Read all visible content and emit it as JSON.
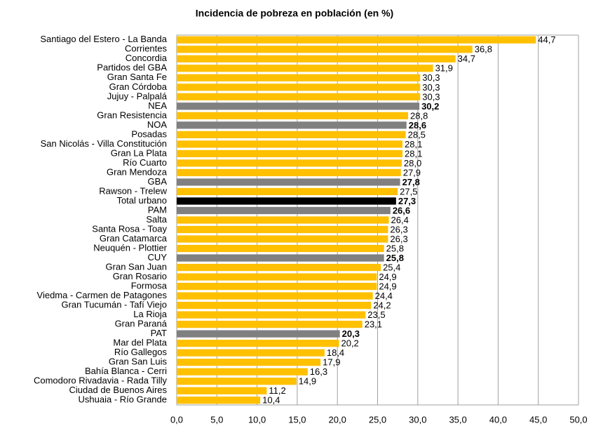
{
  "chart_data": {
    "type": "bar",
    "orientation": "horizontal",
    "title": "Incidencia de pobreza en población (en %)",
    "categories": [
      "Santiago del Estero - La Banda",
      "Corrientes",
      "Concordia",
      "Partidos del GBA",
      "Gran Santa Fe",
      "Gran Córdoba",
      "Jujuy - Palpalá",
      "NEA",
      "Gran Resistencia",
      "NOA",
      "Posadas",
      "San Nicolás - Villa Constitución",
      "Gran La Plata",
      "Río Cuarto",
      "Gran Mendoza",
      "GBA",
      "Rawson - Trelew",
      "Total urbano",
      "PAM",
      "Salta",
      "Santa Rosa - Toay",
      "Gran Catamarca",
      "Neuquén - Plottier",
      "CUY",
      "Gran San Juan",
      "Gran Rosario",
      "Formosa",
      "Viedma - Carmen de Patagones",
      "Gran Tucumán - Tafí Viejo",
      "La Rioja",
      "Gran Paraná",
      "PAT",
      "Mar del Plata",
      "Río Gallegos",
      "Gran San Luis",
      "Bahía Blanca - Cerri",
      "Comodoro Rivadavia - Rada Tilly",
      "Ciudad de Buenos Aires",
      "Ushuaia - Río Grande"
    ],
    "values": [
      44.7,
      36.8,
      34.7,
      31.9,
      30.3,
      30.3,
      30.3,
      30.2,
      28.8,
      28.6,
      28.5,
      28.1,
      28.1,
      28.0,
      27.9,
      27.8,
      27.5,
      27.3,
      26.6,
      26.4,
      26.3,
      26.3,
      25.8,
      25.8,
      25.4,
      24.9,
      24.9,
      24.4,
      24.2,
      23.5,
      23.1,
      20.3,
      20.2,
      18.4,
      17.9,
      16.3,
      14.9,
      11.2,
      10.4
    ],
    "value_labels": [
      "44,7",
      "36,8",
      "34,7",
      "31,9",
      "30,3",
      "30,3",
      "30,3",
      "30,2",
      "28,8",
      "28,6",
      "28,5",
      "28,1",
      "28,1",
      "28,0",
      "27,9",
      "27,8",
      "27,5",
      "27,3",
      "26,6",
      "26,4",
      "26,3",
      "26,3",
      "25,8",
      "25,8",
      "25,4",
      "24,9",
      "24,9",
      "24,4",
      "24,2",
      "23,5",
      "23,1",
      "20,3",
      "20,2",
      "18,4",
      "17,9",
      "16,3",
      "14,9",
      "11,2",
      "10,4"
    ],
    "colors": [
      "#ffc000",
      "#ffc000",
      "#ffc000",
      "#ffc000",
      "#ffc000",
      "#ffc000",
      "#ffc000",
      "#808080",
      "#ffc000",
      "#808080",
      "#ffc000",
      "#ffc000",
      "#ffc000",
      "#ffc000",
      "#ffc000",
      "#808080",
      "#ffc000",
      "#000000",
      "#808080",
      "#ffc000",
      "#ffc000",
      "#ffc000",
      "#ffc000",
      "#808080",
      "#ffc000",
      "#ffc000",
      "#ffc000",
      "#ffc000",
      "#ffc000",
      "#ffc000",
      "#ffc000",
      "#808080",
      "#ffc000",
      "#ffc000",
      "#ffc000",
      "#ffc000",
      "#ffc000",
      "#ffc000",
      "#ffc000"
    ],
    "xlim": [
      0,
      50
    ],
    "xticks": [
      {
        "value": 0,
        "label": "0,0"
      },
      {
        "value": 5,
        "label": "5,0"
      },
      {
        "value": 10,
        "label": "10,0"
      },
      {
        "value": 15,
        "label": "15,0"
      },
      {
        "value": 20,
        "label": "20,0"
      },
      {
        "value": 25,
        "label": "25,0"
      },
      {
        "value": 30,
        "label": "30,0"
      },
      {
        "value": 35,
        "label": "35,0"
      },
      {
        "value": 40,
        "label": "40,0"
      },
      {
        "value": 45,
        "label": "45,0"
      },
      {
        "value": 50,
        "label": "50,0"
      }
    ],
    "grid": true
  }
}
